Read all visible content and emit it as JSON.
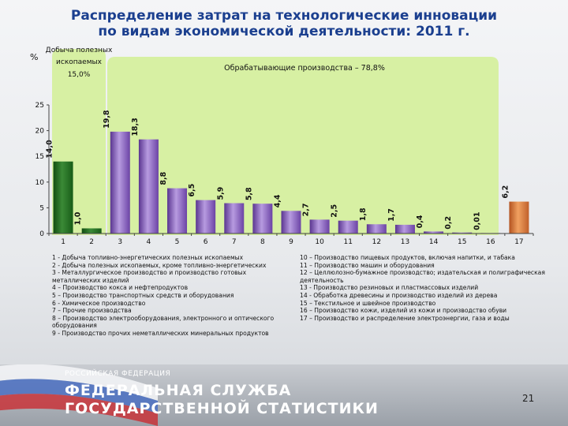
{
  "title_line1": "Распределение затрат на технологические инновации",
  "title_line2": "по видам экономической деятельности: 2011 г.",
  "y_unit": "%",
  "mining_label": [
    "Добыча полезных",
    "ископаемых",
    "15,0%"
  ],
  "manufacturing_label": "Обрабатывающие производства – 78,8%",
  "colors": {
    "highlight_green": "#d7f0a3",
    "bar_green": "#1f6b1e",
    "bar_purple": "#7b4fb6",
    "bar_orange": "#d0702e",
    "title_blue": "#1b3f8f"
  },
  "chart_data": {
    "type": "bar",
    "categories": [
      "1",
      "2",
      "3",
      "4",
      "5",
      "6",
      "7",
      "8",
      "9",
      "10",
      "11",
      "12",
      "13",
      "14",
      "15",
      "16",
      "17"
    ],
    "values": [
      14.0,
      1.0,
      19.8,
      18.3,
      8.8,
      6.5,
      5.9,
      5.8,
      4.4,
      2.7,
      2.5,
      1.8,
      1.7,
      0.4,
      0.2,
      0.01,
      6.2
    ],
    "value_labels": [
      "14,0",
      "1,0",
      "19,8",
      "18,3",
      "8,8",
      "6,5",
      "5,9",
      "5,8",
      "4,4",
      "2,7",
      "2,5",
      "1,8",
      "1,7",
      "0,4",
      "0,2",
      "0,01",
      "6,2"
    ],
    "bar_groups": [
      "mining",
      "mining",
      "manufacturing",
      "manufacturing",
      "manufacturing",
      "manufacturing",
      "manufacturing",
      "manufacturing",
      "manufacturing",
      "manufacturing",
      "manufacturing",
      "manufacturing",
      "manufacturing",
      "manufacturing",
      "manufacturing",
      "manufacturing",
      "utilities"
    ],
    "ylim": [
      0,
      25
    ],
    "yticks": [
      0,
      5,
      10,
      15,
      20,
      25
    ],
    "grid": false
  },
  "legend_left": [
    "1 - Добыча топливно-энергетических полезных ископаемых",
    "2 - Добыча полезных ископаемых, кроме топливно-энергетических",
    "3 - Металлургическое производство и производство готовых металлических изделий",
    "4 – Производство кокса и нефтепродуктов",
    "5 – Производство транспортных средств и оборудования",
    "6 - Химическое производство",
    "7 – Прочие производства",
    "8 – Производство электрооборудования, электронного и оптического оборудования",
    "9 - Производство прочих неметаллических минеральных продуктов"
  ],
  "legend_right": [
    "10 – Производство пищевых продуктов, включая напитки, и табака",
    "11 – Производство машин и оборудования",
    "12 – Целлюлозно-бумажное производство; издательская и полиграфическая деятельность",
    "13 - Производство резиновых и пластмассовых изделий",
    "14 - Обработка древесины и производство изделий из дерева",
    "15 – Текстильное и швейное производство",
    "16 – Производство кожи, изделий из кожи и производство обуви",
    "17 – Производство и распределение электроэнергии, газа и воды"
  ],
  "footer": {
    "org_small": "РОССИЙСКАЯ ФЕДЕРАЦИЯ",
    "org_line1": "ФЕДЕРАЛЬНАЯ СЛУЖБА",
    "org_line2": "ГОСУДАРСТВЕННОЙ СТАТИСТИКИ",
    "page_number": "21"
  }
}
